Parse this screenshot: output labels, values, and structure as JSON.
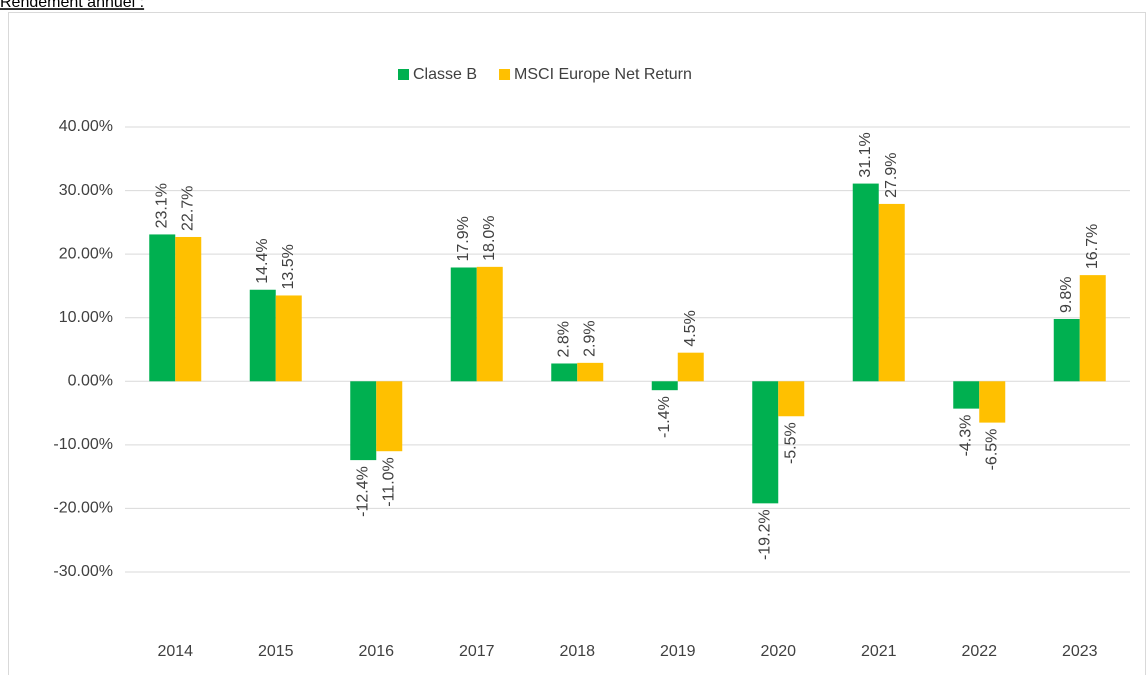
{
  "chart_data": {
    "type": "bar",
    "title": "Rendement annuel :",
    "categories": [
      "2014",
      "2015",
      "2016",
      "2017",
      "2018",
      "2019",
      "2020",
      "2021",
      "2022",
      "2023"
    ],
    "series": [
      {
        "name": "Classe B",
        "color": "#00b050",
        "values": [
          23.1,
          14.4,
          -12.4,
          17.9,
          2.8,
          -1.4,
          -19.2,
          31.1,
          -4.3,
          9.8
        ],
        "value_labels": [
          "23.1%",
          "14.4%",
          "-12.4%",
          "17.9%",
          "2.8%",
          "-1.4%",
          "-19.2%",
          "31.1%",
          "-4.3%",
          "9.8%"
        ]
      },
      {
        "name": "MSCI Europe Net Return",
        "color": "#ffc000",
        "values": [
          22.7,
          13.5,
          -11.0,
          18.0,
          2.9,
          4.5,
          -5.5,
          27.9,
          -6.5,
          16.7
        ],
        "value_labels": [
          "22.7%",
          "13.5%",
          "-11.0%",
          "18.0%",
          "2.9%",
          "4.5%",
          "-5.5%",
          "27.9%",
          "-6.5%",
          "16.7%"
        ]
      }
    ],
    "ylim": [
      -30,
      40
    ],
    "yticks": [
      {
        "value": -30,
        "label": "-30.00%"
      },
      {
        "value": -20,
        "label": "-20.00%"
      },
      {
        "value": -10,
        "label": "-10.00%"
      },
      {
        "value": 0,
        "label": "0.00%"
      },
      {
        "value": 10,
        "label": "10.00%"
      },
      {
        "value": 20,
        "label": "20.00%"
      },
      {
        "value": 30,
        "label": "30.00%"
      },
      {
        "value": 40,
        "label": "40.00%"
      }
    ],
    "grid": true,
    "legend": "top"
  }
}
